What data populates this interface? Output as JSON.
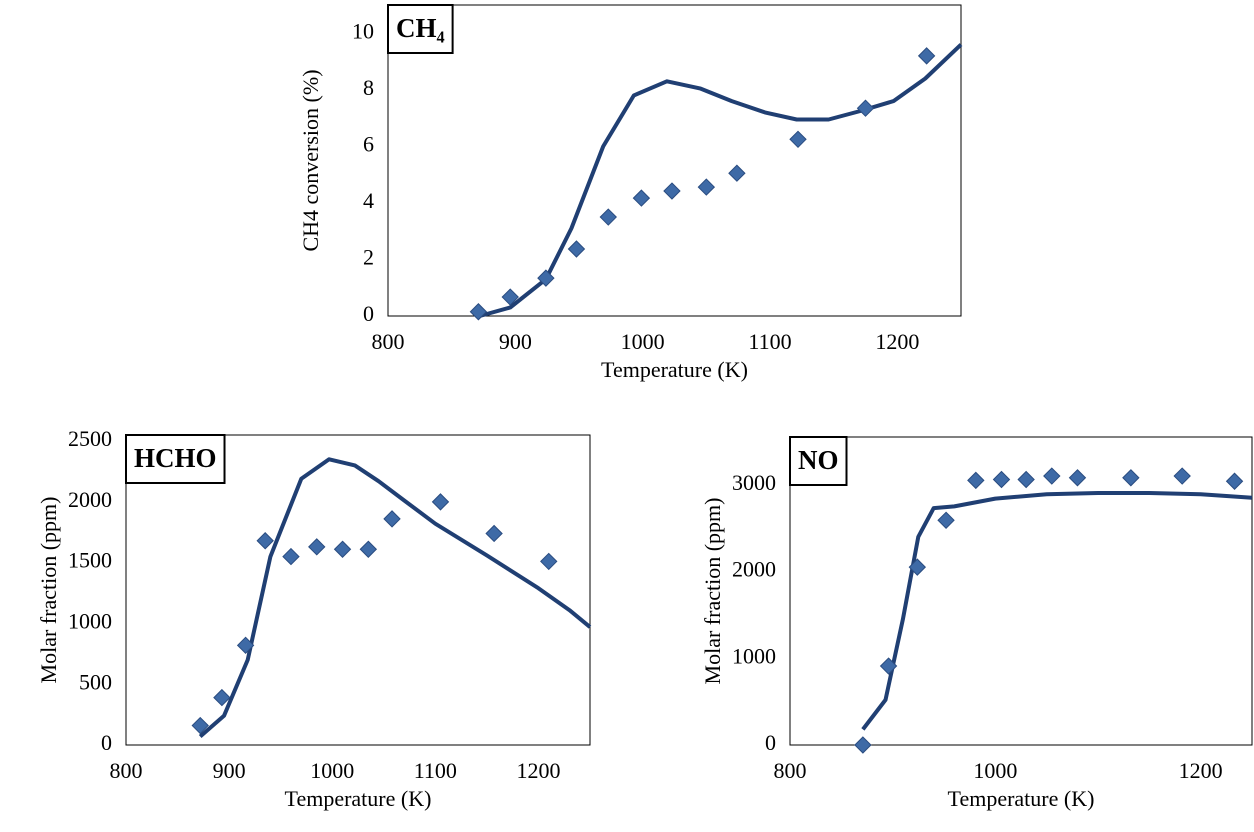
{
  "chart_data": [
    {
      "type": "line",
      "title": "CH₄",
      "x_label": "Temperature (K)",
      "y_label": "CH4 conversion (%)",
      "xlim": [
        800,
        1250
      ],
      "xticks": [
        800,
        900,
        1000,
        1100,
        1200
      ],
      "ylim": [
        0,
        11
      ],
      "yticks": [
        0,
        2,
        4,
        6,
        8,
        10
      ],
      "series": [
        {
          "style": "line",
          "color": "#203f73",
          "x": [
            872,
            896,
            924,
            944,
            969,
            993,
            1019,
            1045,
            1070,
            1096,
            1121,
            1146,
            1171,
            1197,
            1222,
            1250
          ],
          "values": [
            0.0,
            0.3,
            1.3,
            3.1,
            6.0,
            7.8,
            8.3,
            8.05,
            7.6,
            7.2,
            6.95,
            6.95,
            7.25,
            7.6,
            8.4,
            9.6
          ]
        },
        {
          "style": "markers",
          "color": "#3e6aa6",
          "x": [
            871,
            896,
            924,
            948,
            973,
            999,
            1023,
            1050,
            1074,
            1122,
            1175,
            1223
          ],
          "values": [
            0.15,
            0.67,
            1.34,
            2.37,
            3.5,
            4.17,
            4.42,
            4.56,
            5.05,
            6.25,
            7.35,
            9.2
          ]
        }
      ]
    },
    {
      "type": "line",
      "title": "HCHO",
      "x_label": "Temperature (K)",
      "y_label": "Molar fraction (ppm)",
      "xlim": [
        800,
        1250
      ],
      "xticks": [
        800,
        900,
        1000,
        1100,
        1200
      ],
      "ylim": [
        0,
        2550
      ],
      "yticks": [
        0,
        500,
        1000,
        1500,
        2000,
        2500
      ],
      "series": [
        {
          "style": "line",
          "color": "#203f73",
          "x": [
            872,
            895,
            918,
            940,
            970,
            997,
            1022,
            1045,
            1070,
            1100,
            1150,
            1200,
            1230,
            1250
          ],
          "values": [
            70,
            240,
            700,
            1550,
            2190,
            2350,
            2300,
            2170,
            2010,
            1820,
            1560,
            1290,
            1110,
            970
          ]
        },
        {
          "style": "markers",
          "color": "#3e6aa6",
          "x": [
            872,
            893,
            916,
            935,
            960,
            985,
            1010,
            1035,
            1058,
            1105,
            1157,
            1210
          ],
          "values": [
            160,
            390,
            820,
            1680,
            1550,
            1630,
            1610,
            1610,
            1860,
            2000,
            1740,
            1510
          ]
        }
      ]
    },
    {
      "type": "line",
      "title": "NO",
      "x_label": "Temperature (K)",
      "y_label": "Molar fraction (ppm)",
      "xlim": [
        800,
        1250
      ],
      "xticks": [
        800,
        1000,
        1200
      ],
      "ylim": [
        0,
        3550
      ],
      "yticks": [
        0,
        1000,
        2000,
        3000
      ],
      "series": [
        {
          "style": "line",
          "color": "#203f73",
          "x": [
            871,
            893,
            910,
            925,
            940,
            960,
            1000,
            1050,
            1100,
            1150,
            1200,
            1250
          ],
          "values": [
            180,
            520,
            1450,
            2400,
            2730,
            2750,
            2840,
            2890,
            2905,
            2905,
            2890,
            2850
          ]
        },
        {
          "style": "markers",
          "color": "#3e6aa6",
          "x": [
            871,
            896,
            924,
            952,
            981,
            1006,
            1030,
            1055,
            1080,
            1132,
            1182,
            1233
          ],
          "values": [
            0,
            910,
            2050,
            2590,
            3050,
            3060,
            3060,
            3100,
            3080,
            3080,
            3100,
            3040
          ]
        }
      ]
    }
  ]
}
